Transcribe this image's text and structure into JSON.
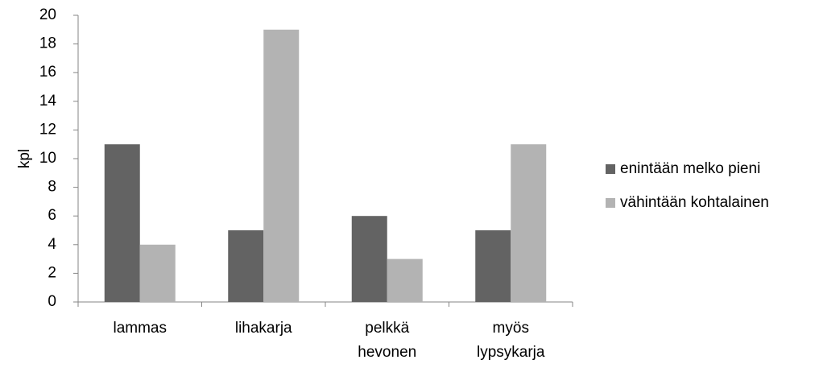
{
  "chart_data": {
    "type": "bar",
    "categories": [
      [
        "lammas"
      ],
      [
        "lihakarja"
      ],
      [
        "pelkkä",
        "hevonen"
      ],
      [
        "myös",
        "lypsykarja"
      ]
    ],
    "series": [
      {
        "name": "enintään melko pieni",
        "color": "#636363",
        "values": [
          11,
          5,
          6,
          5
        ]
      },
      {
        "name": "vähintään kohtalainen",
        "color": "#b3b3b3",
        "values": [
          4,
          19,
          3,
          11
        ]
      }
    ],
    "ylabel": "kpl",
    "ylim": [
      0,
      20
    ],
    "yticks": [
      "0",
      "2",
      "4",
      "6",
      "8",
      "10",
      "12",
      "14",
      "16",
      "18",
      "20"
    ],
    "grid": false,
    "legend_position": "right"
  }
}
